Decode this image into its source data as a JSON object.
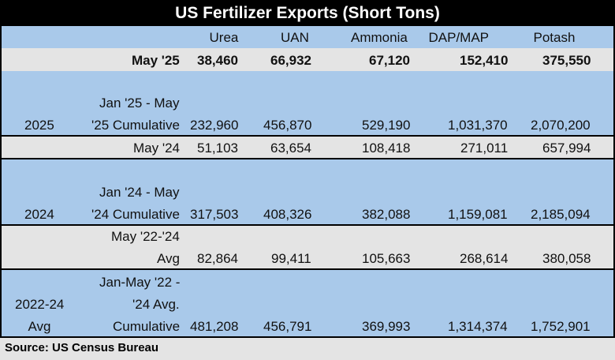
{
  "title": "US Fertilizer Exports (Short Tons)",
  "source": "Source: US Census Bureau",
  "chart_data": {
    "type": "table",
    "title": "US Fertilizer Exports (Short Tons)",
    "columns": [
      "Urea",
      "UAN",
      "Ammonia",
      "DAP/MAP",
      "Potash"
    ],
    "rows": [
      {
        "year": "",
        "label": "May '25",
        "values": [
          "38,460",
          "66,932",
          "67,120",
          "152,410",
          "375,550"
        ],
        "bold": true
      },
      {
        "year": "2025",
        "label": "Jan '25 - May '25 Cumulative",
        "values": [
          "232,960",
          "456,870",
          "529,190",
          "1,031,370",
          "2,070,200"
        ]
      },
      {
        "year": "",
        "label": "May '24",
        "values": [
          "51,103",
          "63,654",
          "108,418",
          "271,011",
          "657,994"
        ]
      },
      {
        "year": "2024",
        "label": "Jan '24 - May '24 Cumulative",
        "values": [
          "317,503",
          "408,326",
          "382,088",
          "1,159,081",
          "2,185,094"
        ]
      },
      {
        "year": "",
        "label": "May '22-'24 Avg",
        "values": [
          "82,864",
          "99,411",
          "105,663",
          "268,614",
          "380,058"
        ]
      },
      {
        "year": "2022-24 Avg",
        "label": "Jan-May '22 - '24 Avg. Cumulative",
        "values": [
          "481,208",
          "456,791",
          "369,993",
          "1,314,374",
          "1,752,901"
        ]
      }
    ],
    "source": "Source: US Census Bureau"
  }
}
